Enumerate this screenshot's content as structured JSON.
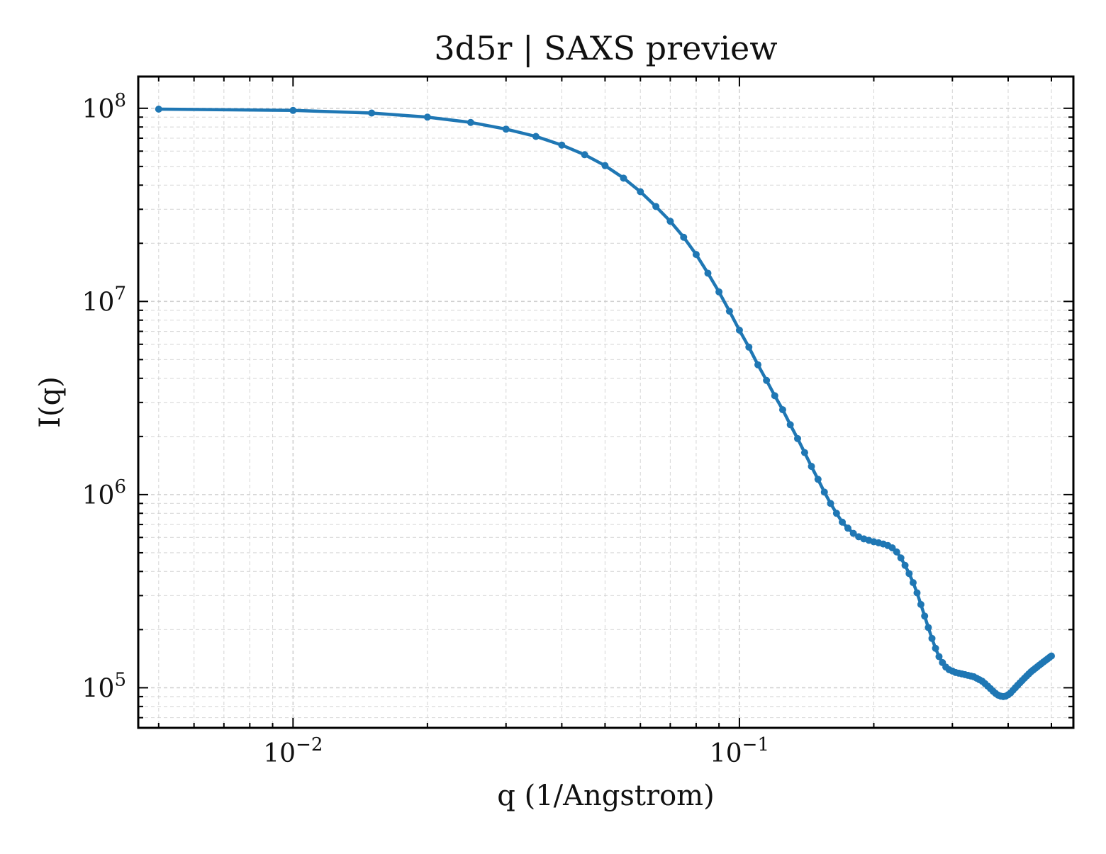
{
  "chart_data": {
    "type": "line",
    "title": "3d5r | SAXS preview",
    "xlabel": "q (1/Angstrom)",
    "ylabel": "I(q)",
    "x_scale": "log",
    "y_scale": "log",
    "xlim": [
      0.0045,
      0.56
    ],
    "ylim": [
      62000,
      146000000
    ],
    "grid": true,
    "legend": "none",
    "x_ticks": [
      {
        "value": 0.01,
        "base": "10",
        "exp": "−2"
      },
      {
        "value": 0.1,
        "base": "10",
        "exp": "−1"
      }
    ],
    "y_ticks": [
      {
        "value": 100000,
        "base": "10",
        "exp": "5"
      },
      {
        "value": 1000000,
        "base": "10",
        "exp": "6"
      },
      {
        "value": 10000000,
        "base": "10",
        "exp": "7"
      },
      {
        "value": 100000000,
        "base": "10",
        "exp": "8"
      }
    ],
    "series": [
      {
        "color": "#1f77b4",
        "x": [
          0.005,
          0.01,
          0.015,
          0.02,
          0.025,
          0.03,
          0.035,
          0.04,
          0.045,
          0.05,
          0.055,
          0.06,
          0.065,
          0.07,
          0.075,
          0.08,
          0.085,
          0.09,
          0.095,
          0.1,
          0.105,
          0.11,
          0.115,
          0.12,
          0.125,
          0.13,
          0.135,
          0.14,
          0.145,
          0.15,
          0.155,
          0.16,
          0.165,
          0.17,
          0.175,
          0.18,
          0.185,
          0.19,
          0.195,
          0.2,
          0.205,
          0.21,
          0.215,
          0.22,
          0.225,
          0.23,
          0.235,
          0.24,
          0.245,
          0.25,
          0.255,
          0.26,
          0.265,
          0.27,
          0.275,
          0.28,
          0.285,
          0.29,
          0.295,
          0.3,
          0.305,
          0.31,
          0.315,
          0.32,
          0.325,
          0.33,
          0.335,
          0.34,
          0.345,
          0.35,
          0.355,
          0.36,
          0.365,
          0.37,
          0.375,
          0.38,
          0.385,
          0.39,
          0.395,
          0.4,
          0.405,
          0.41,
          0.415,
          0.42,
          0.425,
          0.43,
          0.435,
          0.44,
          0.445,
          0.45,
          0.455,
          0.46,
          0.465,
          0.47,
          0.475,
          0.48,
          0.485,
          0.49,
          0.495,
          0.5
        ],
        "y": [
          99000000,
          97500000,
          94500000,
          90000000,
          84500000,
          78000000,
          71500000,
          64500000,
          57500000,
          50500000,
          43500000,
          37000000,
          31000000,
          26000000,
          21500000,
          17500000,
          14000000,
          11200000,
          8900000,
          7100000,
          5800000,
          4700000,
          3900000,
          3250000,
          2750000,
          2300000,
          1950000,
          1650000,
          1400000,
          1200000,
          1030000,
          900000,
          800000,
          720000,
          670000,
          630000,
          605000,
          590000,
          580000,
          570000,
          563000,
          555000,
          545000,
          530000,
          505000,
          470000,
          430000,
          390000,
          350000,
          310000,
          270000,
          235000,
          205000,
          180000,
          160000,
          145000,
          135000,
          128000,
          124000,
          122000,
          120000,
          119000,
          118000,
          117000,
          116000,
          115000,
          114000,
          112000,
          110000,
          108000,
          105000,
          102000,
          99000,
          96000,
          93500,
          91500,
          90500,
          90000,
          90500,
          92000,
          94000,
          97000,
          100000,
          103000,
          106000,
          109000,
          112000,
          115000,
          118000,
          121000,
          123500,
          126000,
          128500,
          131000,
          133500,
          136000,
          138500,
          141000,
          143500,
          146000
        ]
      }
    ]
  }
}
